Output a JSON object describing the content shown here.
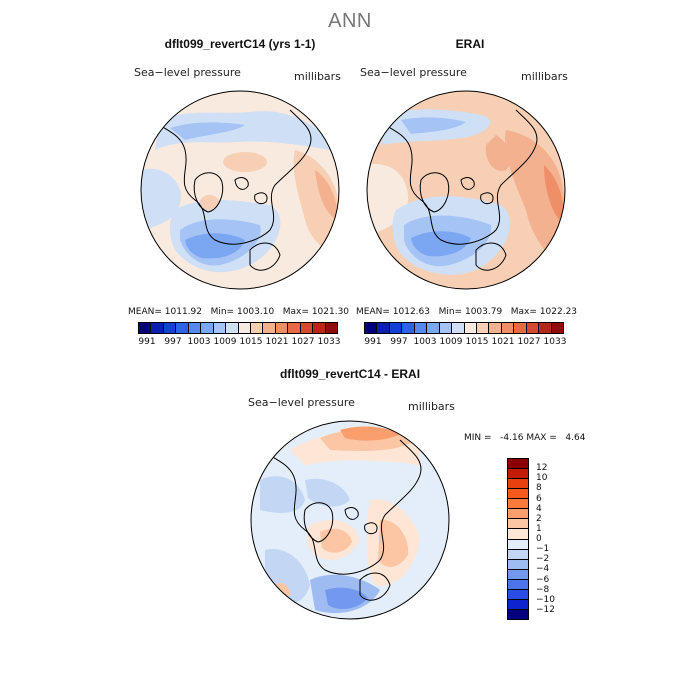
{
  "figure": {
    "title": "ANN"
  },
  "panels": [
    {
      "title": "dflt099_revertC14 (yrs 1-1)",
      "variable": "Sea−level pressure",
      "units": "millibars",
      "stats": {
        "mean_label": "MEAN=",
        "mean": "1011.92",
        "min_label": "Min=",
        "min": "1003.10",
        "max_label": "Max=",
        "max": "1021.30"
      },
      "colorbar": {
        "colors": [
          "#000080",
          "#0a1fb0",
          "#1540d8",
          "#2e62e8",
          "#5587f0",
          "#7ba7f2",
          "#a5c4f5",
          "#cfe0f6",
          "#f9eae0",
          "#f6cfb5",
          "#f3b190",
          "#ef8f68",
          "#e86a45",
          "#d9492d",
          "#b82719",
          "#8f0d0a"
        ],
        "ticks": [
          "991",
          "997",
          "1003",
          "1009",
          "1015",
          "1021",
          "1027",
          "1033"
        ]
      }
    },
    {
      "title": "ERAI",
      "variable": "Sea−level pressure",
      "units": "millibars",
      "stats": {
        "mean_label": "MEAN=",
        "mean": "1012.63",
        "min_label": "Min=",
        "min": "1003.79",
        "max_label": "Max=",
        "max": "1022.23"
      },
      "colorbar": {
        "colors": [
          "#000080",
          "#0a1fb0",
          "#1540d8",
          "#2e62e8",
          "#5587f0",
          "#7ba7f2",
          "#a5c4f5",
          "#cfe0f6",
          "#f9eae0",
          "#f6cfb5",
          "#f3b190",
          "#ef8f68",
          "#e86a45",
          "#d9492d",
          "#b82719",
          "#8f0d0a"
        ],
        "ticks": [
          "991",
          "997",
          "1003",
          "1009",
          "1015",
          "1021",
          "1027",
          "1033"
        ]
      }
    },
    {
      "title": "dflt099_revertC14 - ERAI",
      "variable": "Sea−level pressure",
      "units": "millibars",
      "stats": {
        "min_label": "MIN =",
        "min": "-4.16",
        "max_label": "MAX =",
        "max": "4.64"
      },
      "colorbar": {
        "colors": [
          "#8b0000",
          "#c41a0a",
          "#e8400f",
          "#f55a1c",
          "#f97a3a",
          "#fb9e6e",
          "#fcc6a4",
          "#fde6d6",
          "#e4eefa",
          "#c3d7f5",
          "#9fbcf2",
          "#7399ee",
          "#4d74ea",
          "#2a4de6",
          "#0f24d0",
          "#00007f"
        ],
        "ticks": [
          "12",
          "10",
          "8",
          "6",
          "4",
          "2",
          "1",
          "0",
          "−1",
          "−2",
          "−4",
          "−6",
          "−8",
          "−10",
          "−12"
        ]
      }
    }
  ]
}
